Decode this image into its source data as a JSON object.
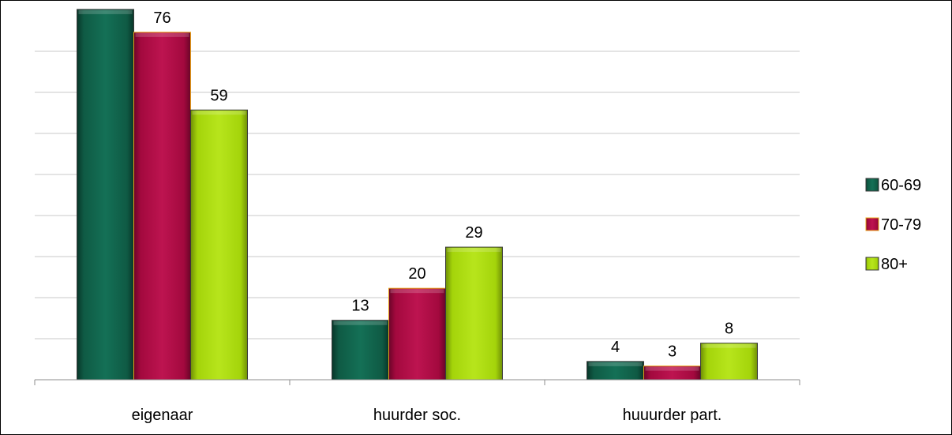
{
  "chart_data": {
    "type": "bar",
    "categories": [
      "eigenaar",
      "huurder soc.",
      "huuurder part."
    ],
    "series": [
      {
        "name": "60-69",
        "values": [
          81,
          13,
          4
        ],
        "color": "#0f5a44"
      },
      {
        "name": "70-79",
        "values": [
          76,
          20,
          3
        ],
        "color": "#a3093e"
      },
      {
        "name": "80+",
        "values": [
          59,
          29,
          8
        ],
        "color": "#a4d40a"
      }
    ],
    "ylim": [
      0,
      81.5
    ],
    "grid": true,
    "show_value_labels": true,
    "legend_position": "right",
    "accent_edge_color": "#e8a317"
  }
}
